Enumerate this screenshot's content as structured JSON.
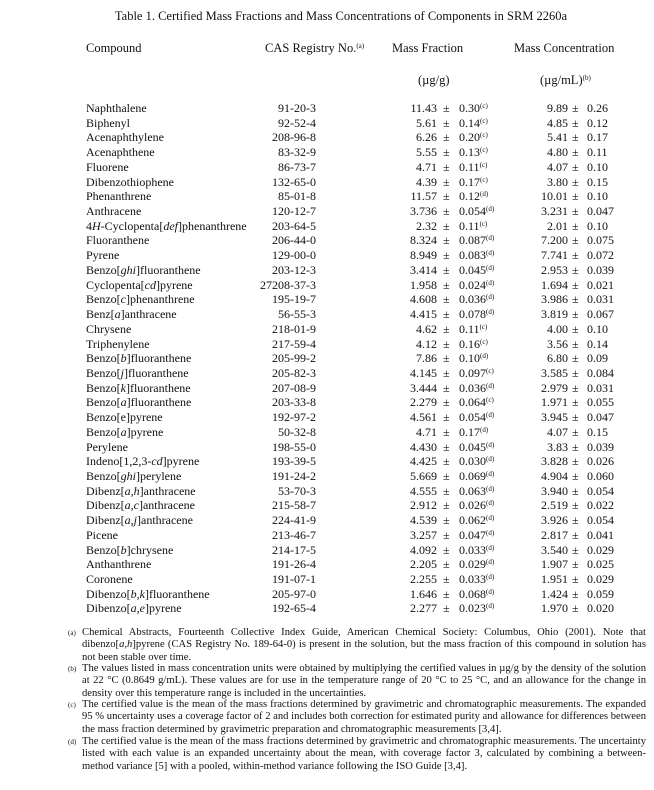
{
  "title": "Table 1.  Certified Mass Fractions and Mass Concentrations of Components in SRM 2260a",
  "headers": {
    "compound": "Compound",
    "cas": "CAS Registry No.",
    "cas_note": "(a)",
    "mass_fraction": "Mass Fraction",
    "mass_fraction_unit": "(µg/g)",
    "mass_conc": "Mass Concentration",
    "mass_conc_unit": "(µg/mL)",
    "mass_conc_note": "(b)"
  },
  "pm": "±",
  "rows": [
    {
      "name": "Naphthalene",
      "italic": [],
      "cas": "91-20-3",
      "mf": "11.43",
      "mfu": "0.30",
      "note": "(c)",
      "mc": "9.89",
      "mcu": "0.26"
    },
    {
      "name": "Biphenyl",
      "italic": [],
      "cas": "92-52-4",
      "mf": "5.61",
      "mfu": "0.14",
      "note": "(c)",
      "mc": "4.85",
      "mcu": "0.12"
    },
    {
      "name": "Acenaphthylene",
      "italic": [],
      "cas": "208-96-8",
      "mf": "6.26",
      "mfu": "0.20",
      "note": "(c)",
      "mc": "5.41",
      "mcu": "0.17"
    },
    {
      "name": "Acenaphthene",
      "italic": [],
      "cas": "83-32-9",
      "mf": "5.55",
      "mfu": "0.13",
      "note": "(c)",
      "mc": "4.80",
      "mcu": "0.11"
    },
    {
      "name": "Fluorene",
      "italic": [],
      "cas": "86-73-7",
      "mf": "4.71",
      "mfu": "0.11",
      "note": "(c)",
      "mc": "4.07",
      "mcu": "0.10"
    },
    {
      "name": "Dibenzothiophene",
      "italic": [],
      "cas": "132-65-0",
      "mf": "4.39",
      "mfu": "0.17",
      "note": "(c)",
      "mc": "3.80",
      "mcu": "0.15"
    },
    {
      "name": "Phenanthrene",
      "italic": [],
      "cas": "85-01-8",
      "mf": "11.57",
      "mfu": "0.12",
      "note": "(d)",
      "mc": "10.01",
      "mcu": "0.10"
    },
    {
      "name": "Anthracene",
      "italic": [],
      "cas": "120-12-7",
      "mf": "3.736",
      "mfu": "0.054",
      "note": "(d)",
      "mc": "3.231",
      "mcu": "0.047"
    },
    {
      "name": "4H-Cyclopenta[def]phenanthrene",
      "italic": [
        "H",
        "def"
      ],
      "cas": "203-64-5",
      "mf": "2.32",
      "mfu": "0.11",
      "note": "(c)",
      "mc": "2.01",
      "mcu": "0.10"
    },
    {
      "name": "Fluoranthene",
      "italic": [],
      "cas": "206-44-0",
      "mf": "8.324",
      "mfu": "0.087",
      "note": "(d)",
      "mc": "7.200",
      "mcu": "0.075"
    },
    {
      "name": "Pyrene",
      "italic": [],
      "cas": "129-00-0",
      "mf": "8.949",
      "mfu": "0.083",
      "note": "(d)",
      "mc": "7.741",
      "mcu": "0.072"
    },
    {
      "name": "Benzo[ghi]fluoranthene",
      "italic": [
        "ghi"
      ],
      "cas": "203-12-3",
      "mf": "3.414",
      "mfu": "0.045",
      "note": "(d)",
      "mc": "2.953",
      "mcu": "0.039"
    },
    {
      "name": "Cyclopenta[cd]pyrene",
      "italic": [
        "cd"
      ],
      "cas": "27208-37-3",
      "mf": "1.958",
      "mfu": "0.024",
      "note": "(d)",
      "mc": "1.694",
      "mcu": "0.021"
    },
    {
      "name": "Benzo[c]phenanthrene",
      "italic": [
        "c"
      ],
      "cas": "195-19-7",
      "mf": "4.608",
      "mfu": "0.036",
      "note": "(d)",
      "mc": "3.986",
      "mcu": "0.031"
    },
    {
      "name": "Benz[a]anthracene",
      "italic": [
        "a"
      ],
      "cas": "56-55-3",
      "mf": "4.415",
      "mfu": "0.078",
      "note": "(d)",
      "mc": "3.819",
      "mcu": "0.067"
    },
    {
      "name": "Chrysene",
      "italic": [],
      "cas": "218-01-9",
      "mf": "4.62",
      "mfu": "0.11",
      "note": "(c)",
      "mc": "4.00",
      "mcu": "0.10"
    },
    {
      "name": "Triphenylene",
      "italic": [],
      "cas": "217-59-4",
      "mf": "4.12",
      "mfu": "0.16",
      "note": "(c)",
      "mc": "3.56",
      "mcu": "0.14"
    },
    {
      "name": "Benzo[b]fluoranthene",
      "italic": [
        "b"
      ],
      "cas": "205-99-2",
      "mf": "7.86",
      "mfu": "0.10",
      "note": "(d)",
      "mc": "6.80",
      "mcu": "0.09"
    },
    {
      "name": "Benzo[j]fluoranthene",
      "italic": [
        "j"
      ],
      "cas": "205-82-3",
      "mf": "4.145",
      "mfu": "0.097",
      "note": "(c)",
      "mc": "3.585",
      "mcu": "0.084"
    },
    {
      "name": "Benzo[k]fluoranthene",
      "italic": [
        "k"
      ],
      "cas": "207-08-9",
      "mf": "3.444",
      "mfu": "0.036",
      "note": "(d)",
      "mc": "2.979",
      "mcu": "0.031"
    },
    {
      "name": "Benzo[a]fluoranthene",
      "italic": [
        "a"
      ],
      "cas": "203-33-8",
      "mf": "2.279",
      "mfu": "0.064",
      "note": "(c)",
      "mc": "1.971",
      "mcu": "0.055"
    },
    {
      "name": "Benzo[e]pyrene",
      "italic": [
        "e"
      ],
      "cas": "192-97-2",
      "mf": "4.561",
      "mfu": "0.054",
      "note": "(d)",
      "mc": "3.945",
      "mcu": "0.047"
    },
    {
      "name": "Benzo[a]pyrene",
      "italic": [
        "a"
      ],
      "cas": "50-32-8",
      "mf": "4.71",
      "mfu": "0.17",
      "note": "(d)",
      "mc": "4.07",
      "mcu": "0.15"
    },
    {
      "name": "Perylene",
      "italic": [],
      "cas": "198-55-0",
      "mf": "4.430",
      "mfu": "0.045",
      "note": "(d)",
      "mc": "3.83",
      "mcu": "0.039"
    },
    {
      "name": "Indeno[1,2,3-cd]pyrene",
      "italic": [
        "cd"
      ],
      "cas": "193-39-5",
      "mf": "4.425",
      "mfu": "0.030",
      "note": "(d)",
      "mc": "3.828",
      "mcu": "0.026"
    },
    {
      "name": "Benzo[ghi]perylene",
      "italic": [
        "ghi"
      ],
      "cas": "191-24-2",
      "mf": "5.669",
      "mfu": "0.069",
      "note": "(d)",
      "mc": "4.904",
      "mcu": "0.060"
    },
    {
      "name": "Dibenz[a,h]anthracene",
      "italic": [
        "a,h"
      ],
      "cas": "53-70-3",
      "mf": "4.555",
      "mfu": "0.063",
      "note": "(d)",
      "mc": "3.940",
      "mcu": "0.054"
    },
    {
      "name": "Dibenz[a,c]anthracene",
      "italic": [
        "a,c"
      ],
      "cas": "215-58-7",
      "mf": "2.912",
      "mfu": "0.026",
      "note": "(d)",
      "mc": "2.519",
      "mcu": "0.022"
    },
    {
      "name": "Dibenz[a,j]anthracene",
      "italic": [
        "a,j"
      ],
      "cas": "224-41-9",
      "mf": "4.539",
      "mfu": "0.062",
      "note": "(d)",
      "mc": "3.926",
      "mcu": "0.054"
    },
    {
      "name": "Picene",
      "italic": [],
      "cas": "213-46-7",
      "mf": "3.257",
      "mfu": "0.047",
      "note": "(d)",
      "mc": "2.817",
      "mcu": "0.041"
    },
    {
      "name": "Benzo[b]chrysene",
      "italic": [
        "b"
      ],
      "cas": "214-17-5",
      "mf": "4.092",
      "mfu": "0.033",
      "note": "(d)",
      "mc": "3.540",
      "mcu": "0.029"
    },
    {
      "name": "Anthanthrene",
      "italic": [],
      "cas": "191-26-4",
      "mf": "2.205",
      "mfu": "0.029",
      "note": "(d)",
      "mc": "1.907",
      "mcu": "0.025"
    },
    {
      "name": "Coronene",
      "italic": [],
      "cas": "191-07-1",
      "mf": "2.255",
      "mfu": "0.033",
      "note": "(d)",
      "mc": "1.951",
      "mcu": "0.029"
    },
    {
      "name": "Dibenzo[b,k]fluoranthene",
      "italic": [
        "b,k"
      ],
      "cas": "205-97-0",
      "mf": "1.646",
      "mfu": "0.068",
      "note": "(d)",
      "mc": "1.424",
      "mcu": "0.059"
    },
    {
      "name": "Dibenzo[a,e]pyrene",
      "italic": [
        "a,e"
      ],
      "cas": "192-65-4",
      "mf": "2.277",
      "mfu": "0.023",
      "note": "(d)",
      "mc": "1.970",
      "mcu": "0.020"
    }
  ],
  "footnotes": [
    {
      "mark": "(a)",
      "text": "Chemical Abstracts, Fourteenth Collective Index Guide, American Chemical Society:  Columbus, Ohio (2001).  Note that dibenzo[a,h]pyrene (CAS Registry No. 189-64-0) is present in the solution, but the mass fraction of this compound in solution has not been stable over time.",
      "italic": [
        "a,h"
      ]
    },
    {
      "mark": "(b)",
      "text": "The values listed in mass concentration units were obtained by multiplying the certified values in µg/g by the density of the solution at 22 °C (0.8649 g/mL).  These values are for use in the temperature range of 20 °C to 25 °C, and an allowance for the change in density over this temperature range is included in the uncertainties.",
      "italic": []
    },
    {
      "mark": "(c)",
      "text": "The certified value is the mean of the mass fractions determined by gravimetric and chromatographic measurements.  The expanded 95 % uncertainty uses a coverage factor of 2 and includes both correction for estimated purity and allowance for differences between the mass fraction determined by gravimetric preparation and chromatographic measurements [3,4].",
      "italic": []
    },
    {
      "mark": "(d)",
      "text": "The certified value is the mean of the mass fractions determined by gravimetric and chromatographic measurements.  The uncertainty listed with each value is an expanded uncertainty about the mean, with coverage factor 3, calculated by combining a between-method variance [5] with a pooled, within-method variance following the ISO Guide [3,4].",
      "italic": []
    }
  ]
}
